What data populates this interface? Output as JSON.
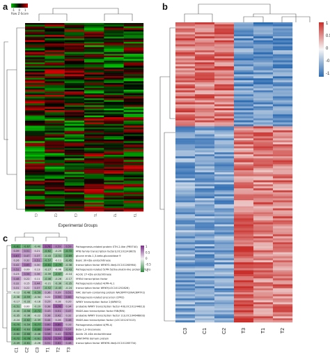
{
  "panels": {
    "a": {
      "label": "a",
      "legend_title": "Row Z-Score",
      "legend_ticks": [
        "-1",
        "0",
        "1"
      ],
      "xlabel": "Experimental Groups",
      "columns": [
        "C1",
        "C2",
        "C3",
        "T1",
        "T2",
        "T3"
      ],
      "colors": {
        "low": "#00c000",
        "mid": "#000000",
        "high": "#d00000"
      }
    },
    "b": {
      "label": "b",
      "columns": [
        "C3",
        "C1",
        "C2",
        "T3",
        "T1",
        "T2"
      ],
      "legend_ticks": [
        "1",
        "0.5",
        "0",
        "-0.5",
        "-1"
      ],
      "colors": {
        "low": "#2f6db3",
        "mid": "#f6f6f6",
        "high": "#c9302c"
      }
    },
    "c": {
      "label": "c",
      "columns": [
        "C1",
        "C2",
        "C3",
        "T1",
        "T2",
        "T3"
      ],
      "legend_ticks": [
        "1",
        "0.5",
        "0",
        "-0.5",
        "-1"
      ],
      "colors": {
        "low": "#2e8b3f",
        "mid": "#f2f2f2",
        "high": "#7b2c8a"
      },
      "rows": [
        "Pathogenesis-related protein STH-2-like (PR5T40)",
        "MYB family transcription factor(LOC101243605)",
        "glucan endo-1,3-beta-glucosidase 9",
        "Basic 30-kDa endochitinase",
        "transcription factor WRKY3-like(LOC101260964)",
        "Pathogenesis-related 5(PR-5)(thaumatin-like proteins (TLPs)",
        "Acidic 27-kDa endochitinase",
        "MYB4 transcription factor",
        "Pathogenesis-related 4(PR-4).1",
        "transcription factor WRKY(LOC101252826)",
        "NAC domain-containing protein NAC6MTF2(NAC6MTF2)",
        "Pathogenesis-related precursor (CPR2)",
        "WRKY transcription factor 2(WRKY2)",
        "probable WRKY transcription factor 40(LOC101244813)",
        "MADS-box transcription factor RIN(RIN)",
        "probable WRKY transcription factor 11(LOC104646803)",
        "MADS-box transcription factor (LOC101247413)",
        "Pathogenesis-related 4(PR-4)",
        "Beta-1,3-Glucanase",
        "Acidic 20-kDa endochitinase",
        "SANT/MYB domain protein",
        "transcription factor WRKY6-like(LOC101265734)"
      ],
      "values": [
        [
          "-0.81",
          "-0.67",
          "-0.40",
          "0.78",
          "0.59",
          "0.59"
        ],
        [
          "0.39",
          "0.51",
          "0.21",
          "-0.62",
          "-0.25",
          "-0.72"
        ],
        [
          "0.67",
          "0.47",
          "0.37",
          "-0.43",
          "-0.51",
          "-0.69"
        ],
        [
          "0.26",
          "0.32",
          "0.51",
          "-0.57",
          "-0.11",
          "-0.45"
        ],
        [
          "0.42",
          "0.65",
          "0.30",
          "-0.81",
          "-0.79",
          "-0.38"
        ],
        [
          "0.52",
          "0.09",
          "0.13",
          "-0.27",
          "-0.06",
          "-0.43"
        ],
        [
          "0.23",
          "0.56",
          "0.36",
          "-0.39",
          "-0.67",
          "-0.14"
        ],
        [
          "0.48",
          "0.22",
          "0.11",
          "-0.46",
          "-0.26",
          "-0.17"
        ],
        [
          "0.32",
          "0.15",
          "0.44",
          "-0.21",
          "-0.36",
          "-0.35"
        ],
        [
          "0.31",
          "0.22",
          "0.37",
          "-0.52",
          "-0.45",
          "-0.24"
        ],
        [
          "-0.12",
          "-0.48",
          "-0.59",
          "0.36",
          "0.39",
          "0.51"
        ],
        [
          "-0.38",
          "-0.59",
          "-0.34",
          "0.22",
          "0.56",
          "0.60"
        ],
        [
          "-0.17",
          "-0.33",
          "-0.18",
          "0.29",
          "0.18",
          "0.20"
        ],
        [
          "-0.51",
          "0.00",
          "-0.29",
          "0.38",
          "0.76",
          "0.34"
        ],
        [
          "-0.40",
          "-0.58",
          "-0.72",
          "0.43",
          "0.51",
          "0.47"
        ],
        [
          "-0.35",
          "-0.38",
          "-0.22",
          "0.38",
          "0.42",
          "0.32"
        ],
        [
          "-0.24",
          "-0.62",
          "-0.39",
          "0.44",
          "0.28",
          "0.46"
        ],
        [
          "-0.70",
          "-0.59",
          "-0.77",
          "0.60",
          "0.80",
          "0.33"
        ],
        [
          "-0.81",
          "-0.63",
          "-0.80",
          "0.64",
          "0.71",
          "0.57"
        ],
        [
          "-0.60",
          "-0.68",
          "-0.48",
          "0.58",
          "0.42",
          "0.72"
        ],
        [
          "-0.72",
          "-0.78",
          "-0.61",
          "0.73",
          "0.74",
          "0.86"
        ],
        [
          "-0.49",
          "-0.61",
          "-0.26",
          "0.51",
          "0.62",
          "0.48"
        ]
      ]
    }
  },
  "chart_data": [
    {
      "type": "heatmap",
      "title": "",
      "xlabel": "Experimental Groups",
      "ylabel": "",
      "categories": [
        "C1",
        "C2",
        "C3",
        "T1",
        "T2",
        "T3"
      ],
      "legend": {
        "title": "Row Z-Score",
        "range": [
          -1,
          1
        ]
      },
      "note": ""
    },
    {
      "type": "heatmap",
      "title": "",
      "categories": [
        "C3",
        "C1",
        "C2",
        "T3",
        "T1",
        "T2"
      ],
      "legend": {
        "range": [
          -1,
          1
        ]
      }
    },
    {
      "type": "heatmap",
      "title": "",
      "categories": [
        "C1",
        "C2",
        "C3",
        "T1",
        "T2",
        "T3"
      ],
      "legend": {
        "range": [
          -1,
          1
        ]
      }
    }
  ]
}
